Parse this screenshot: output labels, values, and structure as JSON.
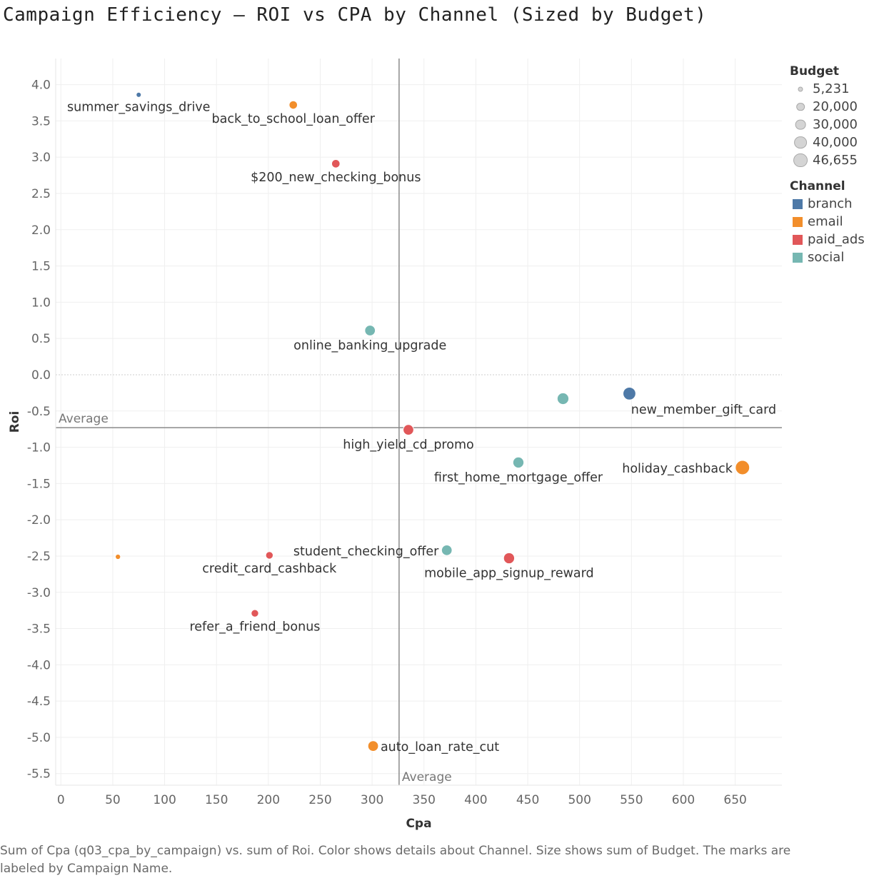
{
  "chart_data": {
    "type": "scatter",
    "title": "Campaign Efficiency — ROI vs CPA by Channel (Sized by Budget)",
    "xlabel": "Cpa",
    "ylabel": "Roi",
    "xlim": [
      -5,
      695
    ],
    "ylim": [
      -5.66,
      4.36
    ],
    "x_ticks": [
      "0",
      "50",
      "100",
      "150",
      "200",
      "250",
      "300",
      "350",
      "400",
      "450",
      "500",
      "550",
      "600",
      "650"
    ],
    "y_ticks": [
      "4.0",
      "3.5",
      "3.0",
      "2.5",
      "2.0",
      "1.5",
      "1.0",
      "0.5",
      "0.0",
      "-0.5",
      "-1.0",
      "-1.5",
      "-2.0",
      "-2.5",
      "-3.0",
      "-3.5",
      "-4.0",
      "-4.5",
      "-5.0",
      "-5.5"
    ],
    "grid": true,
    "reference_lines": [
      {
        "axis": "x",
        "value": 326,
        "label": "Average"
      },
      {
        "axis": "y",
        "value": -0.73,
        "label": "Average"
      }
    ],
    "points": [
      {
        "label": "summer_savings_drive",
        "channel": "branch",
        "x": 75,
        "y": 3.86,
        "budget": 5231
      },
      {
        "label": "back_to_school_loan_offer",
        "channel": "email",
        "x": 224,
        "y": 3.72,
        "budget": 20000
      },
      {
        "label": "$200_new_checking_bonus",
        "channel": "paid_ads",
        "x": 265,
        "y": 2.91,
        "budget": 20000
      },
      {
        "label": "online_banking_upgrade",
        "channel": "social",
        "x": 298,
        "y": 0.61,
        "budget": 30000
      },
      {
        "label": "new_member_gift_card",
        "channel": "branch",
        "x": 548,
        "y": -0.26,
        "budget": 40000
      },
      {
        "label": "",
        "channel": "social",
        "x": 484,
        "y": -0.33,
        "budget": 35000
      },
      {
        "label": "high_yield_cd_promo",
        "channel": "paid_ads",
        "x": 335,
        "y": -0.76,
        "budget": 30000
      },
      {
        "label": "first_home_mortgage_offer",
        "channel": "social",
        "x": 441,
        "y": -1.21,
        "budget": 32000
      },
      {
        "label": "holiday_cashback",
        "channel": "email",
        "x": 657,
        "y": -1.28,
        "budget": 46655
      },
      {
        "label": "student_checking_offer",
        "channel": "social",
        "x": 372,
        "y": -2.42,
        "budget": 30000
      },
      {
        "label": "mobile_app_signup_reward",
        "channel": "paid_ads",
        "x": 432,
        "y": -2.53,
        "budget": 32000
      },
      {
        "label": "credit_card_cashback",
        "channel": "paid_ads",
        "x": 201,
        "y": -2.49,
        "budget": 16000
      },
      {
        "label": "",
        "channel": "email",
        "x": 55,
        "y": -2.51,
        "budget": 6000
      },
      {
        "label": "refer_a_friend_bonus",
        "channel": "paid_ads",
        "x": 187,
        "y": -3.29,
        "budget": 16000
      },
      {
        "label": "auto_loan_rate_cut",
        "channel": "email",
        "x": 301,
        "y": -5.12,
        "budget": 30000
      }
    ]
  },
  "legend": {
    "size_title": "Budget",
    "sizes": [
      {
        "label": "5,231",
        "value": 5231
      },
      {
        "label": "20,000",
        "value": 20000
      },
      {
        "label": "30,000",
        "value": 30000
      },
      {
        "label": "40,000",
        "value": 40000
      },
      {
        "label": "46,655",
        "value": 46655
      }
    ],
    "color_title": "Channel",
    "channels": [
      {
        "label": "branch",
        "color": "#4e79a7"
      },
      {
        "label": "email",
        "color": "#f28e2b"
      },
      {
        "label": "paid_ads",
        "color": "#e15759"
      },
      {
        "label": "social",
        "color": "#76b7b2"
      }
    ]
  },
  "caption": "Sum of Cpa (q03_cpa_by_campaign) vs. sum of Roi.  Color shows details about Channel.  Size shows sum of Budget.  The marks are labeled by Campaign Name."
}
